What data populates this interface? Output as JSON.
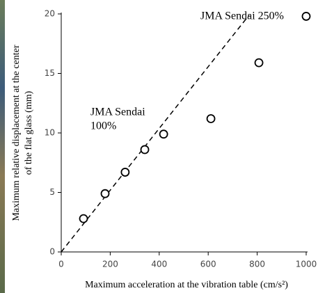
{
  "chart_data": {
    "type": "scatter",
    "x_label": "Maximum acceleration at the vibration table (cm/s²)",
    "y_label": [
      "Maximum relative displacement at the center",
      "of the flat glass (mm)"
    ],
    "annotations": [
      {
        "lines": [
          "JMA Sendai 250%"
        ]
      },
      {
        "lines": [
          "JMA Sendai",
          "100%"
        ]
      }
    ],
    "x": [
      91,
      179,
      261,
      341,
      418,
      611,
      807,
      1000
    ],
    "values": [
      2.8,
      4.9,
      6.7,
      8.6,
      9.9,
      11.2,
      15.9,
      19.8
    ],
    "color": "#000000",
    "fit_line": {
      "x": [
        0,
        767
      ],
      "values": [
        0,
        19.9
      ],
      "color": "#000000"
    },
    "xlim": [
      0,
      1000
    ],
    "xticks": [
      0,
      200,
      400,
      600,
      800,
      1000
    ],
    "ylim": [
      0,
      20
    ],
    "yticks": [
      0,
      5,
      10,
      15,
      20
    ],
    "grid": false
  }
}
